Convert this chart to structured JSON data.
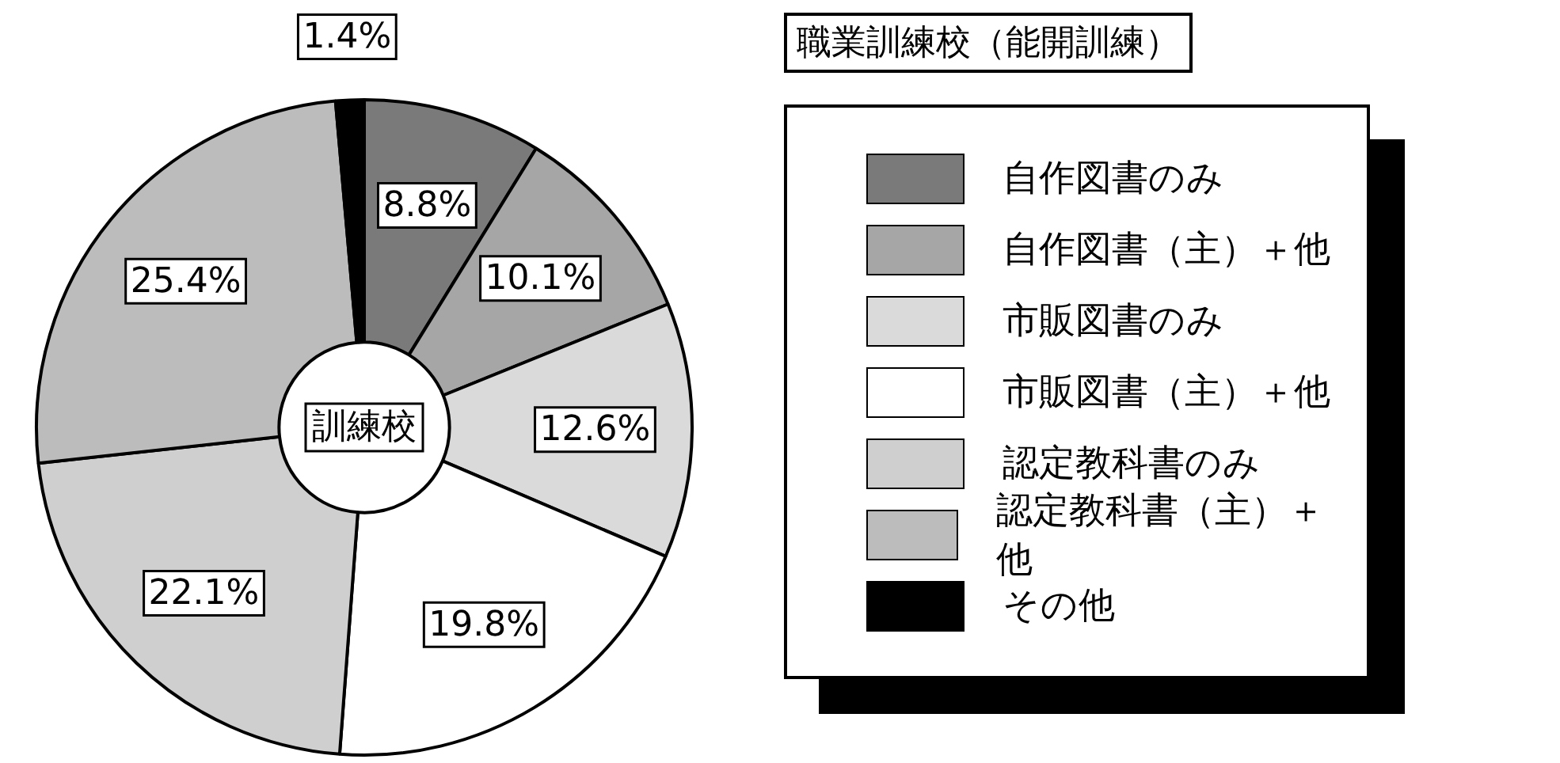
{
  "chart_data": {
    "type": "donut",
    "title": "職業訓練校（能開訓練）",
    "categories": [
      "自作図書のみ",
      "自作図書（主）＋他",
      "市販図書のみ",
      "市販図書（主）＋他",
      "認定教科書のみ",
      "認定教科書（主）＋他",
      "その他"
    ],
    "values": [
      8.8,
      10.1,
      12.6,
      19.8,
      22.1,
      25.4,
      1.4
    ],
    "value_labels": [
      "8.8%",
      "10.1%",
      "12.6%",
      "19.8%",
      "22.1%",
      "25.4%",
      "1.4%"
    ],
    "colors": [
      "#7a7a7a",
      "#a6a6a6",
      "#dadada",
      "#ffffff",
      "#cfcfcf",
      "#bcbcbc",
      "#000000"
    ],
    "annotations": [
      "訓練校"
    ],
    "legend": "right"
  }
}
